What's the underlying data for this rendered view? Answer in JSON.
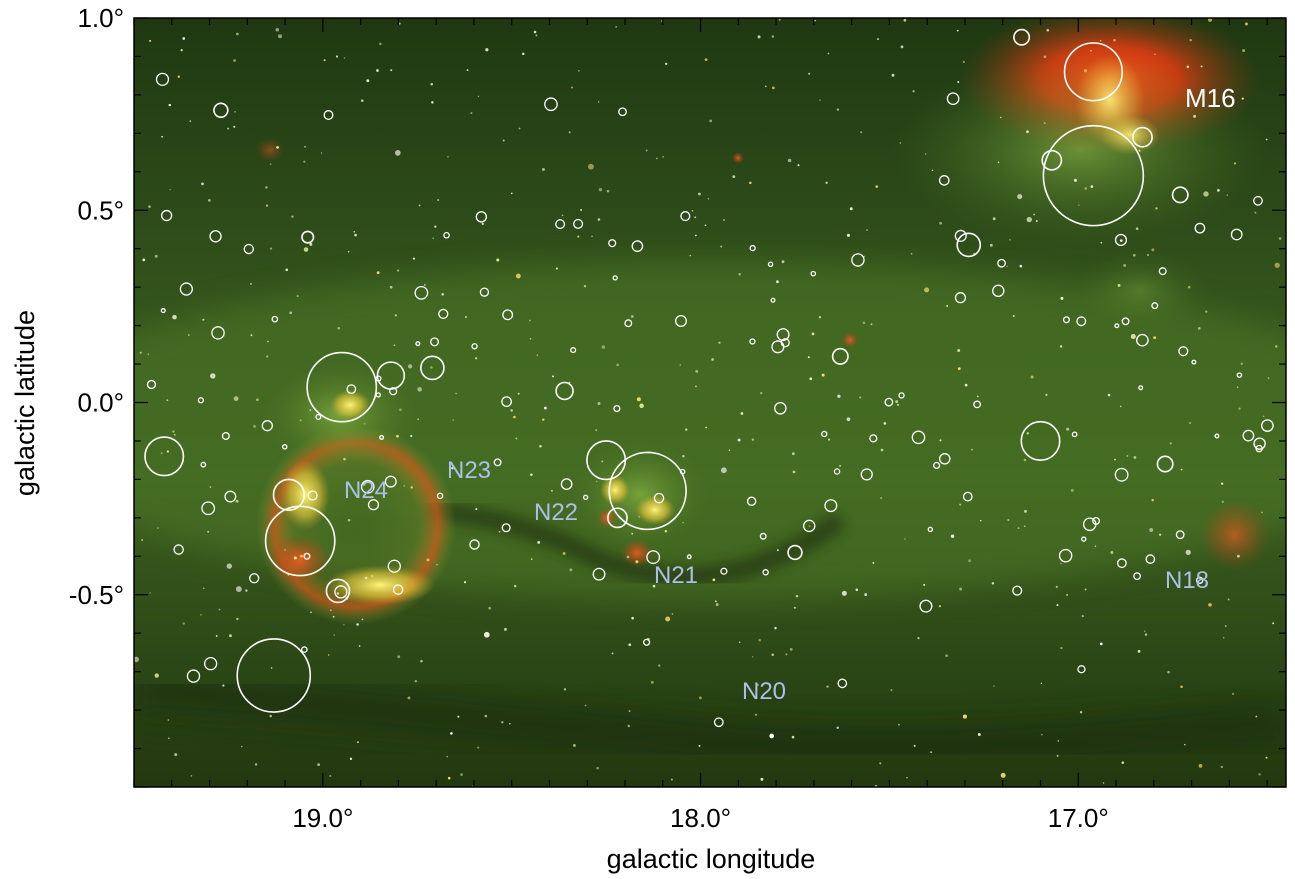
{
  "figure": {
    "xlabel": "galactic longitude",
    "ylabel": "galactic latitude",
    "x_range": [
      19.5,
      16.45
    ],
    "y_range": [
      -1.0,
      1.0
    ],
    "x_ticks": [
      {
        "value": 19.0,
        "label": "19.0°"
      },
      {
        "value": 18.0,
        "label": "18.0°"
      },
      {
        "value": 17.0,
        "label": "17.0°"
      }
    ],
    "y_ticks": [
      {
        "value": 1.0,
        "label": "1.0°"
      },
      {
        "value": 0.5,
        "label": "0.5°"
      },
      {
        "value": 0.0,
        "label": "0.0°"
      },
      {
        "value": -0.5,
        "label": "-0.5°"
      }
    ],
    "minor_tick_step": 0.1,
    "colors": {
      "background": "#2b4416",
      "nebula_red": "#ff4a12",
      "nebula_yellow": "#f3d23a",
      "nebula_green": "#6f9f37",
      "white_circle": "#ffffff",
      "blue_circle": "#3f8fe0",
      "blue_label": "#a9c2e6"
    }
  },
  "labels": {
    "m16": "M16",
    "n24": "N24",
    "n23": "N23",
    "n22": "N22",
    "n21": "N21",
    "n20": "N20",
    "n18": "N18"
  },
  "blue_regions": [
    {
      "id": "N24",
      "l": 18.94,
      "b": -0.31,
      "r_deg": 0.18
    },
    {
      "id": "N23",
      "l": 18.68,
      "b": -0.235,
      "r_deg": 0.012
    },
    {
      "id": "N22",
      "l": 18.26,
      "b": -0.3,
      "r_deg": 0.025
    },
    {
      "id": "N21",
      "l": 18.19,
      "b": -0.39,
      "r_deg": 0.04
    },
    {
      "id": "N20",
      "l": 17.92,
      "b": -0.685,
      "r_deg": 0.016
    },
    {
      "id": "N18",
      "l": 16.58,
      "b": -0.35,
      "r_deg": 0.085
    }
  ],
  "white_regions": [
    {
      "l": 16.96,
      "b": 0.86,
      "r": 0.075
    },
    {
      "l": 16.96,
      "b": 0.59,
      "r": 0.13
    },
    {
      "l": 16.83,
      "b": 0.69,
      "r": 0.025
    },
    {
      "l": 17.07,
      "b": 0.63,
      "r": 0.025
    },
    {
      "l": 17.29,
      "b": 0.41,
      "r": 0.03
    },
    {
      "l": 17.1,
      "b": -0.1,
      "r": 0.05
    },
    {
      "l": 18.95,
      "b": 0.04,
      "r": 0.09
    },
    {
      "l": 18.82,
      "b": 0.07,
      "r": 0.035
    },
    {
      "l": 18.71,
      "b": 0.09,
      "r": 0.03
    },
    {
      "l": 19.42,
      "b": -0.14,
      "r": 0.05
    },
    {
      "l": 19.06,
      "b": -0.36,
      "r": 0.09
    },
    {
      "l": 19.09,
      "b": -0.24,
      "r": 0.04
    },
    {
      "l": 19.13,
      "b": -0.71,
      "r": 0.095
    },
    {
      "l": 18.96,
      "b": -0.49,
      "r": 0.03
    },
    {
      "l": 18.25,
      "b": -0.15,
      "r": 0.05
    },
    {
      "l": 18.14,
      "b": -0.23,
      "r": 0.1
    },
    {
      "l": 18.22,
      "b": -0.3,
      "r": 0.025
    },
    {
      "l": 18.36,
      "b": 0.03,
      "r": 0.022
    },
    {
      "l": 17.75,
      "b": -0.39,
      "r": 0.018
    },
    {
      "l": 16.77,
      "b": -0.16,
      "r": 0.02
    },
    {
      "l": 17.63,
      "b": 0.12,
      "r": 0.02
    },
    {
      "l": 19.27,
      "b": 0.76,
      "r": 0.018
    },
    {
      "l": 19.04,
      "b": 0.43,
      "r": 0.015
    },
    {
      "l": 16.73,
      "b": 0.54,
      "r": 0.02
    },
    {
      "l": 17.15,
      "b": 0.95,
      "r": 0.02
    }
  ]
}
